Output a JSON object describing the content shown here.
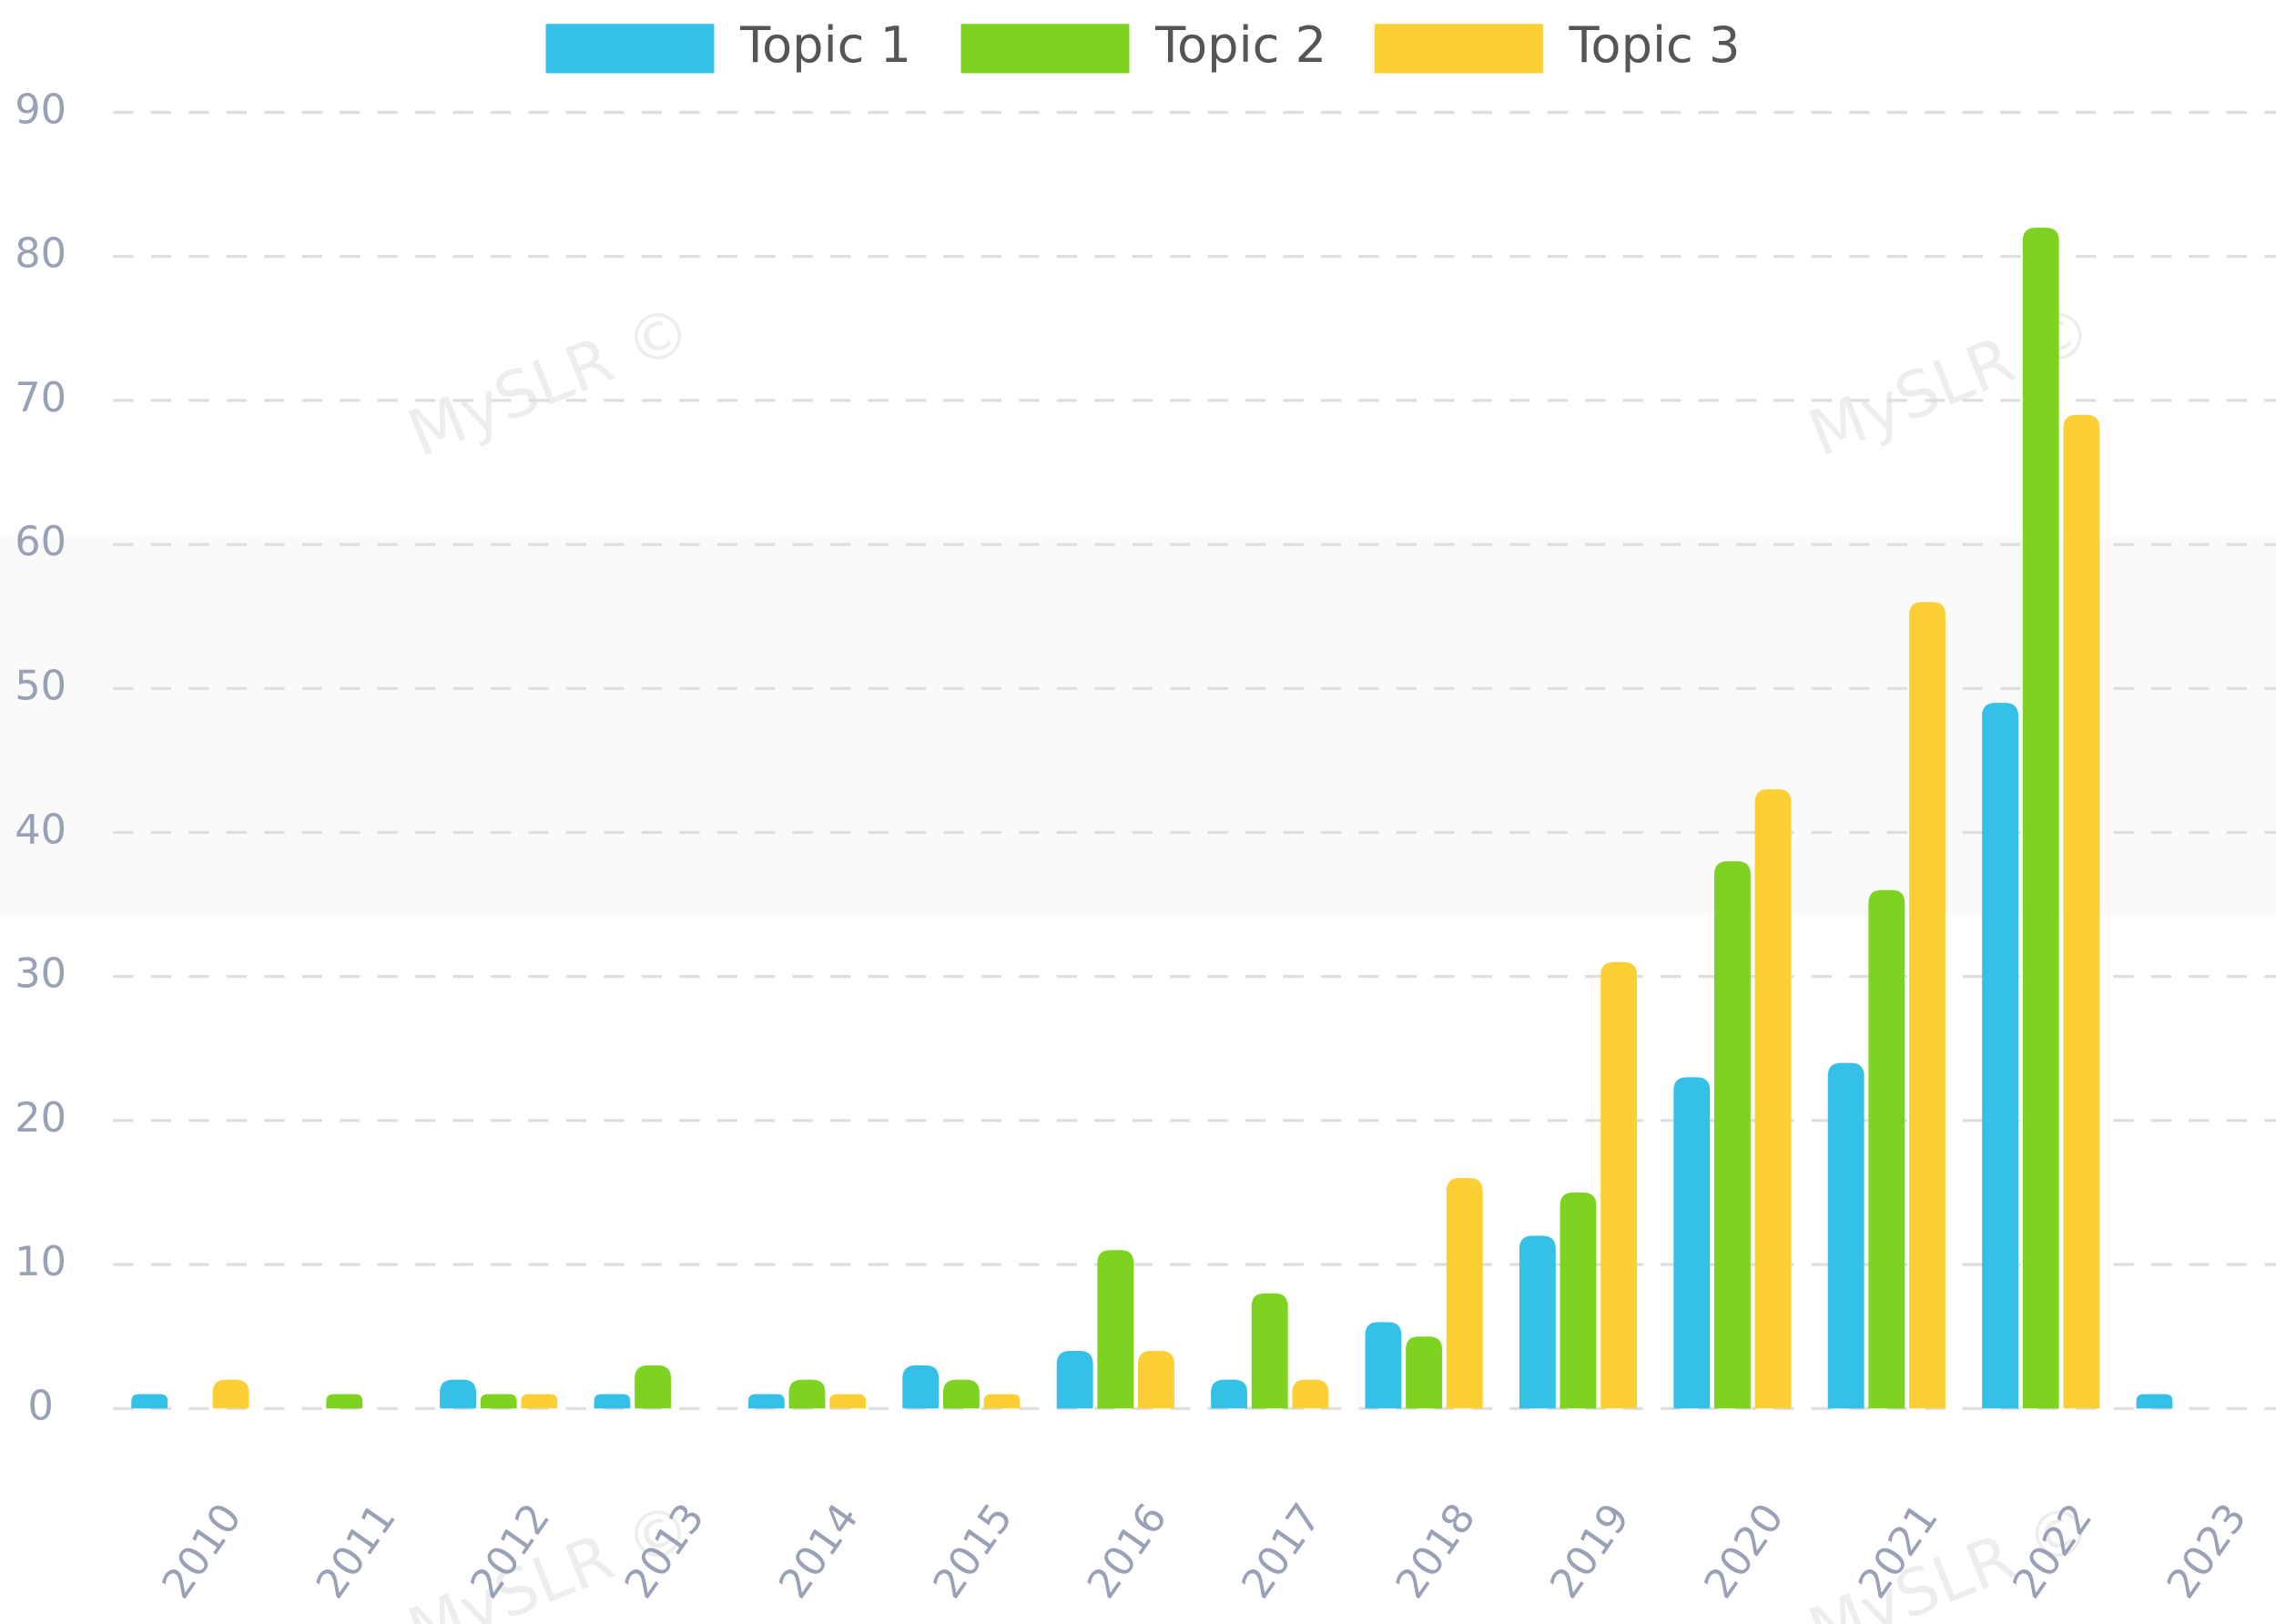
{
  "chart_data": {
    "type": "bar",
    "watermark": "MySLR ©",
    "categories": [
      "2010",
      "2011",
      "2012",
      "2013",
      "2014",
      "2015",
      "2016",
      "2017",
      "2018",
      "2019",
      "2020",
      "2021",
      "2022",
      "2023"
    ],
    "series": [
      {
        "name": "Topic 1",
        "color": "#35c0e8",
        "values": [
          1,
          0,
          2,
          1,
          1,
          3,
          4,
          2,
          6,
          12,
          23,
          24,
          49,
          1
        ]
      },
      {
        "name": "Topic 2",
        "color": "#7ed321",
        "values": [
          0,
          1,
          1,
          3,
          2,
          2,
          11,
          8,
          5,
          15,
          38,
          36,
          82,
          0
        ]
      },
      {
        "name": "Topic 3",
        "color": "#fccf35",
        "values": [
          2,
          0,
          1,
          0,
          1,
          1,
          4,
          2,
          16,
          31,
          43,
          56,
          69,
          0
        ]
      }
    ],
    "ylim": [
      0,
      90
    ],
    "yticks": [
      0,
      10,
      20,
      30,
      40,
      50,
      60,
      70,
      80,
      90
    ],
    "grid": true
  }
}
